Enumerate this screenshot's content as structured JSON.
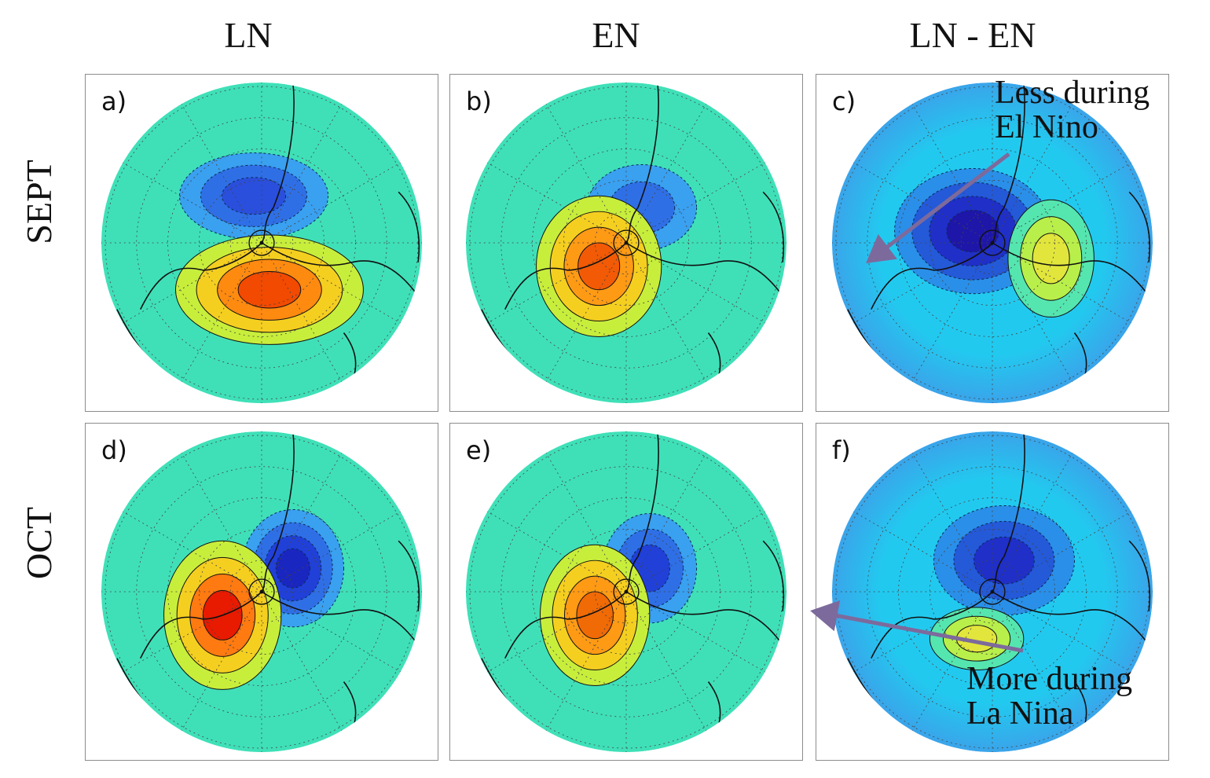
{
  "columns": [
    "LN",
    "EN",
    "LN - EN"
  ],
  "rows": [
    "SEPT",
    "OCT"
  ],
  "panels": [
    {
      "letter": "a)",
      "row": "SEPT",
      "column": "LN"
    },
    {
      "letter": "b)",
      "row": "SEPT",
      "column": "EN"
    },
    {
      "letter": "c)",
      "row": "SEPT",
      "column": "LN - EN"
    },
    {
      "letter": "d)",
      "row": "OCT",
      "column": "LN"
    },
    {
      "letter": "e)",
      "row": "OCT",
      "column": "EN"
    },
    {
      "letter": "f)",
      "row": "OCT",
      "column": "LN - EN"
    }
  ],
  "annotations": {
    "top": "Less during\nEl Nino",
    "bottom": "More during\nLa Nina"
  },
  "colors": {
    "ocean_low": "#1f3fd8",
    "background_field": "#37dfc2",
    "high": "#ff2a00",
    "arrow": "#7d6a9c",
    "frame": "#8c8c8c"
  }
}
